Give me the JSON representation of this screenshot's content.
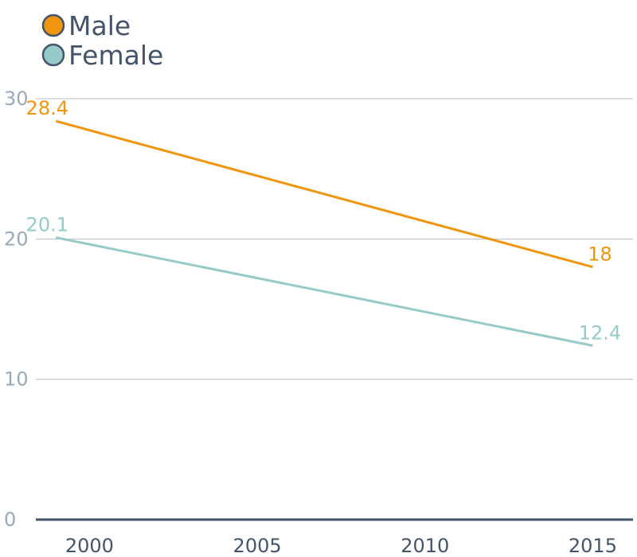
{
  "chart_data": {
    "type": "line",
    "title": "",
    "xlabel": "",
    "ylabel": "",
    "x": [
      1999,
      2015
    ],
    "x_ticks": [
      "2000",
      "2005",
      "2010",
      "2015"
    ],
    "x_tick_values": [
      2000,
      2005,
      2010,
      2015
    ],
    "y_ticks": [
      "0",
      "10",
      "20",
      "30"
    ],
    "y_tick_values": [
      0,
      10,
      20,
      30
    ],
    "xlim": [
      1998.4,
      2016.2
    ],
    "ylim": [
      0,
      30
    ],
    "grid": true,
    "legend": "top-left",
    "series": [
      {
        "name": "Male",
        "color": "#f0960e",
        "values": [
          28.4,
          18
        ],
        "labels": [
          "28.4",
          "18"
        ]
      },
      {
        "name": "Female",
        "color": "#96cac8",
        "values": [
          20.1,
          12.4
        ],
        "labels": [
          "20.1",
          "12.4"
        ]
      }
    ]
  },
  "colors": {
    "gridline": "#b8bec4",
    "baseline": "#44546a",
    "legend_outline": "#44546a"
  }
}
